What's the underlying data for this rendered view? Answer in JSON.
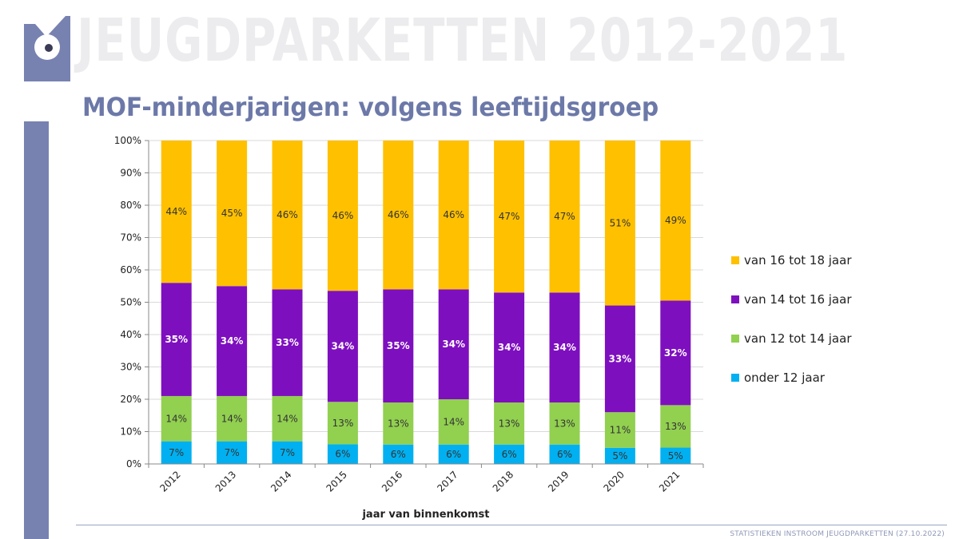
{
  "header": {
    "watermark": "JEUGDPARKETTEN 2012-2021",
    "subtitle": "MOF-minderjarigen: volgens leeftijdsgroep"
  },
  "footer": {
    "text": "STATISTIEKEN INSTROOM JEUGDPARKETTEN (27.10.2022)"
  },
  "colors": {
    "accent": "#7782b1",
    "title": "#6c79a8",
    "v16_18": "#ffc000",
    "v14_16": "#7e0fbf",
    "v12_14": "#92d050",
    "onder12": "#00b0f0"
  },
  "chart_data": {
    "type": "bar",
    "stacked": true,
    "title": "MOF-minderjarigen: volgens leeftijdsgroep",
    "xlabel": "jaar van binnenkomst",
    "ylabel": "",
    "ylim": [
      0,
      100
    ],
    "yticks": [
      "0%",
      "10%",
      "20%",
      "30%",
      "40%",
      "50%",
      "60%",
      "70%",
      "80%",
      "90%",
      "100%"
    ],
    "categories": [
      "2012",
      "2013",
      "2014",
      "2015",
      "2016",
      "2017",
      "2018",
      "2019",
      "2020",
      "2021"
    ],
    "legend_position": "right",
    "series": [
      {
        "name": "onder 12 jaar",
        "color": "#00b0f0",
        "values": [
          7,
          7,
          7,
          6,
          6,
          6,
          6,
          6,
          5,
          5
        ],
        "labels": [
          "7%",
          "7%",
          "7%",
          "6%",
          "6%",
          "6%",
          "6%",
          "6%",
          "5%",
          "5%"
        ]
      },
      {
        "name": "van 12 tot 14 jaar",
        "color": "#92d050",
        "values": [
          14,
          14,
          14,
          13,
          13,
          14,
          13,
          13,
          11,
          13
        ],
        "labels": [
          "14%",
          "14%",
          "14%",
          "13%",
          "13%",
          "14%",
          "13%",
          "13%",
          "11%",
          "13%"
        ]
      },
      {
        "name": "van 14 tot 16 jaar",
        "color": "#7e0fbf",
        "values": [
          35,
          34,
          33,
          34,
          35,
          34,
          34,
          34,
          33,
          32
        ],
        "labels": [
          "35%",
          "34%",
          "33%",
          "34%",
          "35%",
          "34%",
          "34%",
          "34%",
          "33%",
          "32%"
        ]
      },
      {
        "name": "van 16 tot 18 jaar",
        "color": "#ffc000",
        "values": [
          44,
          45,
          46,
          46,
          46,
          46,
          47,
          47,
          51,
          49
        ],
        "labels": [
          "44%",
          "45%",
          "46%",
          "46%",
          "46%",
          "46%",
          "47%",
          "47%",
          "51%",
          "49%"
        ]
      }
    ],
    "legend_order": [
      "van 16 tot 18 jaar",
      "van 14 tot 16 jaar",
      "van 12 tot 14 jaar",
      "onder 12 jaar"
    ]
  }
}
